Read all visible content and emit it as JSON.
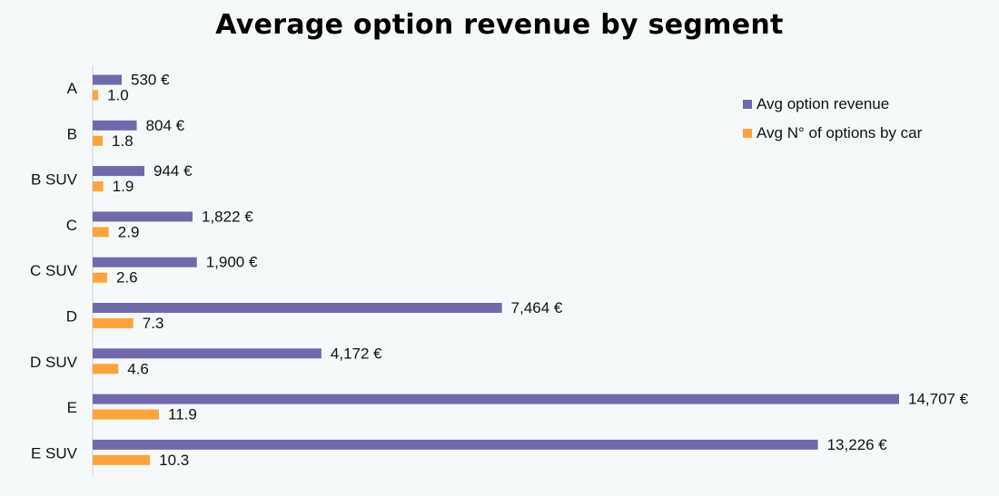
{
  "chart_data": {
    "type": "bar",
    "orientation": "horizontal",
    "title": "Average option revenue by segment",
    "categories": [
      "A",
      "B",
      "B SUV",
      "C",
      "C SUV",
      "D",
      "D SUV",
      "E",
      "E SUV"
    ],
    "series": [
      {
        "name": "Avg option revenue",
        "color": "#6f6aae",
        "values": [
          530,
          804,
          944,
          1822,
          1900,
          7464,
          4172,
          14707,
          13226
        ],
        "labels": [
          "530 €",
          "804 €",
          "944 €",
          "1,822 €",
          "1,900 €",
          "7,464 €",
          "4,172 €",
          "14,707 €",
          "13,226 €"
        ]
      },
      {
        "name": "Avg N° of options by car",
        "color": "#ffa43a",
        "values": [
          1.0,
          1.8,
          1.9,
          2.9,
          2.6,
          7.3,
          4.6,
          11.9,
          10.3
        ],
        "labels": [
          "1.0",
          "1.8",
          "1.9",
          "2.9",
          "2.6",
          "7.3",
          "4.6",
          "11.9",
          "10.3"
        ]
      }
    ],
    "grid": false,
    "legend": "top-right"
  }
}
